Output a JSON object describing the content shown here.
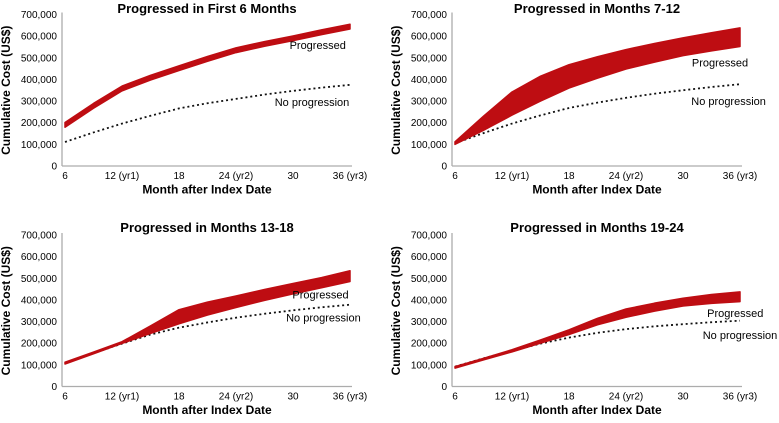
{
  "figure": {
    "accent_red": "#BE0D12",
    "axis_color": "#ACACAC",
    "dotted_color": "#111111",
    "background": "#ffffff"
  },
  "axes": {
    "ylabel": "Cumulative Cost (US$)",
    "xlabel": "Month after Index Date",
    "ylim": [
      0,
      700000
    ],
    "xlim": [
      6,
      36
    ],
    "ytick_values": [
      0,
      100000,
      200000,
      300000,
      400000,
      500000,
      600000,
      700000
    ],
    "ytick_labels": [
      "0",
      "100,000",
      "200,000",
      "300,000",
      "400,000",
      "500,000",
      "600,000",
      "700,000"
    ],
    "xticks": [
      {
        "month": 6,
        "label": "6"
      },
      {
        "month": 12,
        "label": "12 (yr1)"
      },
      {
        "month": 18,
        "label": "18"
      },
      {
        "month": 24,
        "label": "24 (yr2)"
      },
      {
        "month": 30,
        "label": "30"
      },
      {
        "month": 36,
        "label": "36 (yr3)"
      }
    ]
  },
  "chart_data": [
    {
      "type": "area",
      "title": "Progressed in First 6 Months",
      "x": [
        6,
        9,
        12,
        15,
        18,
        21,
        24,
        27,
        30,
        33,
        36
      ],
      "series": [
        {
          "name": "Progressed",
          "kind": "band",
          "upper": [
            201000,
            289000,
            369000,
            419000,
            463000,
            506000,
            546000,
            575000,
            601000,
            629000,
            655000
          ],
          "lower": [
            179000,
            267000,
            347000,
            397000,
            441000,
            484000,
            524000,
            553000,
            579000,
            607000,
            633000
          ],
          "label": {
            "text": "Progressed",
            "month": 32.6,
            "value": 559000
          }
        },
        {
          "name": "No progression",
          "kind": "dotted",
          "values": [
            111000,
            155000,
            196000,
            232000,
            266000,
            290000,
            310000,
            330000,
            347000,
            362000,
            375000
          ],
          "label": {
            "text": "No progression",
            "month": 32.0,
            "value": 296000
          }
        }
      ]
    },
    {
      "type": "area",
      "title": "Progressed in Months 7-12",
      "x": [
        6,
        9,
        12,
        15,
        18,
        21,
        24,
        27,
        30,
        33,
        36
      ],
      "series": [
        {
          "name": "Progressed",
          "kind": "band",
          "upper": [
            112000,
            230000,
            342000,
            415000,
            468000,
            505000,
            538000,
            566000,
            592000,
            616000,
            638000
          ],
          "lower": [
            100000,
            165000,
            235000,
            300000,
            360000,
            406000,
            448000,
            480000,
            510000,
            532000,
            552000
          ],
          "label": {
            "text": "Progressed",
            "month": 33.9,
            "value": 478000
          }
        },
        {
          "name": "No progression",
          "kind": "dotted",
          "values": [
            105000,
            152000,
            196000,
            234000,
            268000,
            293000,
            315000,
            334000,
            350000,
            365000,
            378000
          ],
          "label": {
            "text": "No progression",
            "month": 34.8,
            "value": 301000
          }
        }
      ]
    },
    {
      "type": "area",
      "title": "Progressed in Months 13-18",
      "x": [
        6,
        9,
        12,
        15,
        18,
        21,
        24,
        27,
        30,
        33,
        36
      ],
      "series": [
        {
          "name": "Progressed",
          "kind": "band",
          "upper": [
            112000,
            159000,
            207000,
            280000,
            355000,
            390000,
            418000,
            448000,
            476000,
            503000,
            535000
          ],
          "lower": [
            104000,
            151000,
            199000,
            245000,
            290000,
            330000,
            365000,
            398000,
            428000,
            456000,
            485000
          ],
          "label": {
            "text": "Progressed",
            "month": 32.9,
            "value": 425000
          }
        },
        {
          "name": "No progression",
          "kind": "dotted",
          "values": [
            108000,
            154000,
            198000,
            240000,
            272000,
            296000,
            318000,
            336000,
            352000,
            366000,
            378000
          ],
          "label": {
            "text": "No progression",
            "month": 33.2,
            "value": 318000
          }
        }
      ]
    },
    {
      "type": "area",
      "title": "Progressed in Months 19-24",
      "x": [
        6,
        9,
        12,
        15,
        18,
        21,
        24,
        27,
        30,
        33,
        36
      ],
      "series": [
        {
          "name": "Progressed",
          "kind": "band",
          "upper": [
            92000,
            130000,
            170000,
            215000,
            262000,
            315000,
            358000,
            385000,
            408000,
            425000,
            437000
          ],
          "lower": [
            85000,
            123000,
            160000,
            200000,
            240000,
            285000,
            320000,
            348000,
            372000,
            384000,
            392000
          ],
          "label": {
            "text": "Progressed",
            "month": 35.5,
            "value": 340000
          }
        },
        {
          "name": "No progression",
          "kind": "dotted",
          "values": [
            92000,
            130000,
            165000,
            198000,
            226000,
            248000,
            265000,
            278000,
            288000,
            297000,
            304000
          ],
          "label": {
            "text": "No progression",
            "month": 36.0,
            "value": 239000
          }
        }
      ]
    }
  ]
}
